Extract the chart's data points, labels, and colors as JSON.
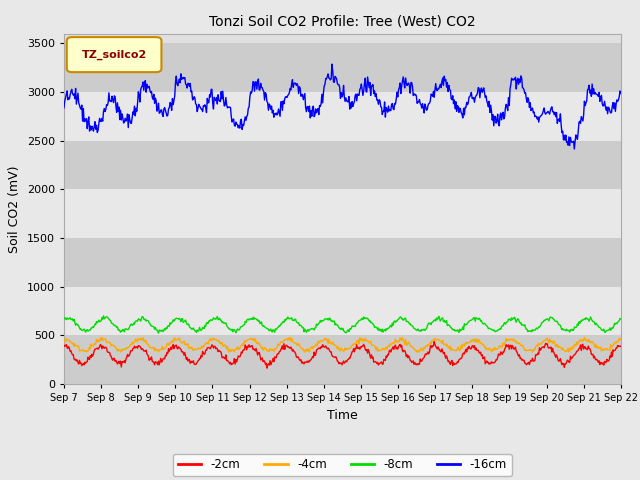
{
  "title": "Tonzi Soil CO2 Profile: Tree (West) CO2",
  "xlabel": "Time",
  "ylabel": "Soil CO2 (mV)",
  "ylim": [
    0,
    3600
  ],
  "yticks": [
    0,
    500,
    1000,
    1500,
    2000,
    2500,
    3000,
    3500
  ],
  "fig_bg_color": "#e8e8e8",
  "plot_bg_color": "#e0e0e0",
  "band_color_dark": "#cccccc",
  "band_color_light": "#e8e8e8",
  "legend_label": "TZ_soilco2",
  "legend_bg": "#ffffcc",
  "legend_border": "#cc8800",
  "series_labels": [
    "-2cm",
    "-4cm",
    "-8cm",
    "-16cm"
  ],
  "series_colors": [
    "#ff0000",
    "#ffaa00",
    "#00dd00",
    "#0000ff"
  ],
  "n_days": 15,
  "start_day": 7,
  "seed": 42
}
